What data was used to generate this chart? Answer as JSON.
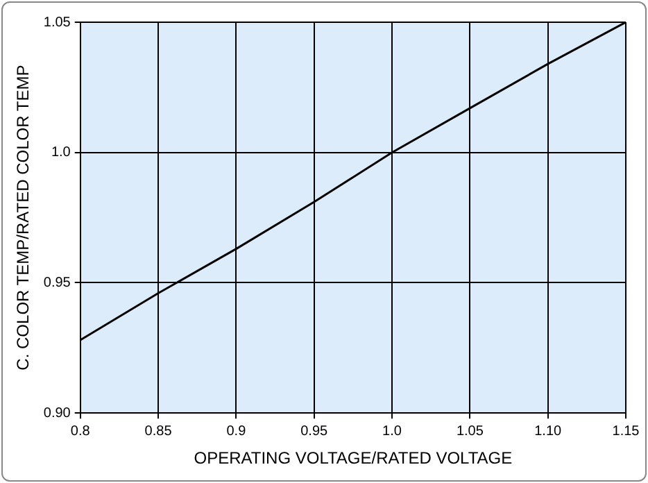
{
  "chart_data": {
    "type": "line",
    "xlabel": "OPERATING VOLTAGE/RATED VOLTAGE",
    "ylabel": "C. COLOR TEMP/RATED COLOR TEMP",
    "x": [
      0.8,
      0.85,
      0.9,
      0.95,
      1.0,
      1.05,
      1.1,
      1.15
    ],
    "series": [
      {
        "color": "#000000",
        "values": [
          0.928,
          0.946,
          0.963,
          0.981,
          1.0,
          1.017,
          1.034,
          1.05
        ]
      }
    ],
    "xlim": [
      0.8,
      1.15
    ],
    "ylim": [
      0.9,
      1.05
    ],
    "xticks": [
      0.8,
      0.85,
      0.9,
      0.95,
      {
        "value": 1.0,
        "label": "1.0"
      },
      1.05,
      {
        "value": 1.1,
        "label": "1.10"
      },
      1.15
    ],
    "yticks": [
      {
        "value": 0.9,
        "label": "0.90"
      },
      0.95,
      {
        "value": 1.0,
        "label": "1.0"
      },
      1.05
    ],
    "grid": true,
    "legend": false,
    "marker": "none",
    "line_style": "solid"
  }
}
